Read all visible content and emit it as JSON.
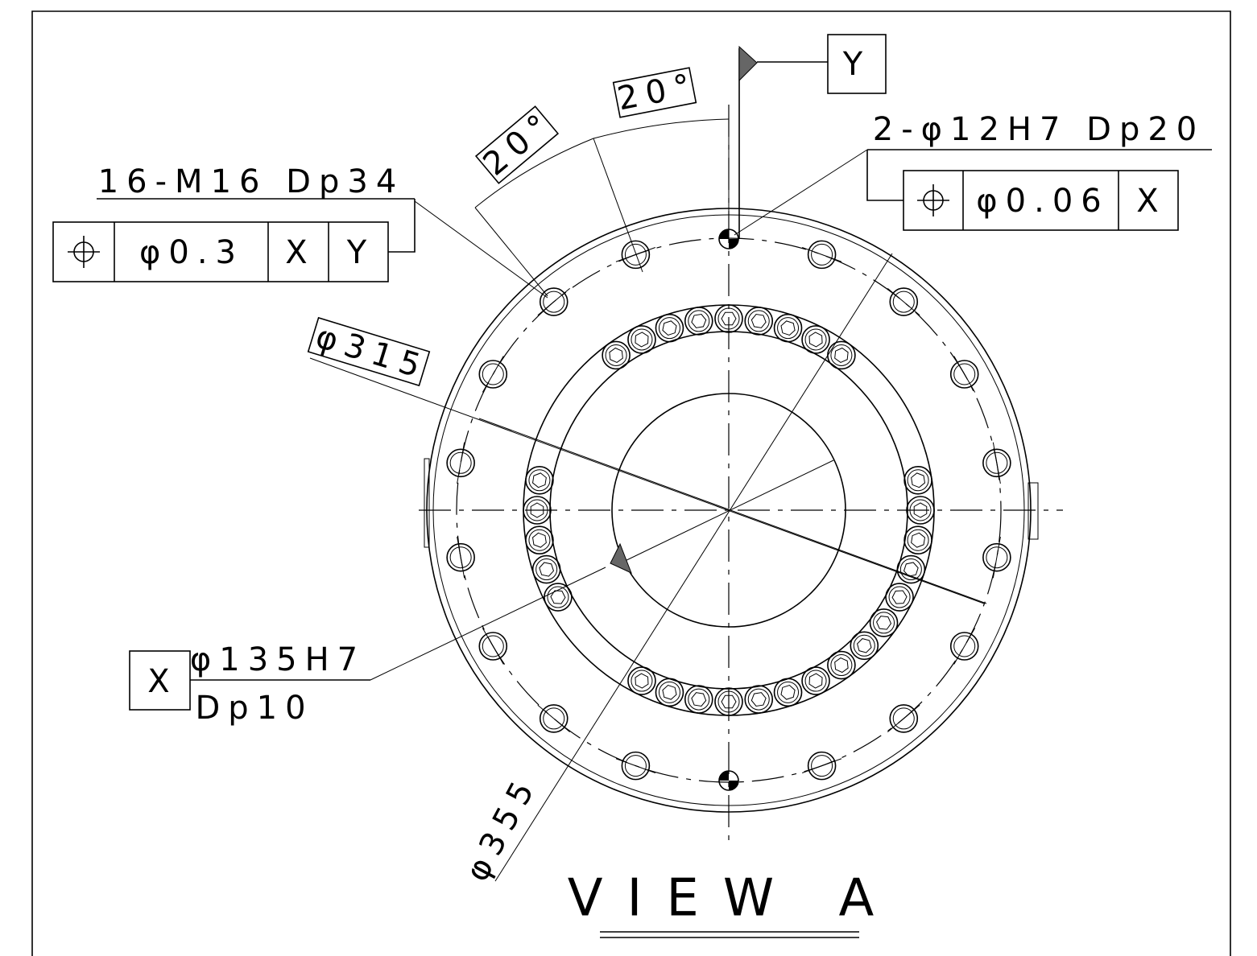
{
  "title": "VIEW A",
  "datums": {
    "y": "Y",
    "x": "X"
  },
  "callouts": [
    {
      "label": "16-M16 Dp34",
      "frame": [
        "φ0.3",
        "X",
        "Y"
      ]
    },
    {
      "label": "2-φ12H7 Dp20",
      "frame": [
        "φ0.06",
        "X"
      ]
    }
  ],
  "angles": [
    "20°",
    "20°"
  ],
  "diameters": [
    "φ315",
    "φ355"
  ],
  "bore": {
    "label": "φ135H7",
    "depth": "Dp10"
  }
}
